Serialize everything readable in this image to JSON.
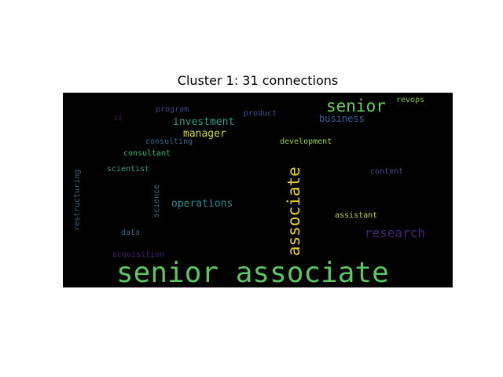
{
  "title": "Cluster 1: 31 connections",
  "chart_data": {
    "type": "wordcloud",
    "title": "Cluster 1: 31 connections",
    "background": "#000000",
    "words": [
      {
        "text": "senior associate",
        "color": "#5cc463",
        "orientation": "horizontal"
      },
      {
        "text": "associate",
        "color": "#e8d21d",
        "orientation": "vertical"
      },
      {
        "text": "senior",
        "color": "#6ccd5a",
        "orientation": "horizontal"
      },
      {
        "text": "research",
        "color": "#46237a",
        "orientation": "horizontal"
      },
      {
        "text": "operations",
        "color": "#2c8b8c",
        "orientation": "horizontal"
      },
      {
        "text": "investment",
        "color": "#2e9a8a",
        "orientation": "horizontal"
      },
      {
        "text": "manager",
        "color": "#d2db24",
        "orientation": "horizontal"
      },
      {
        "text": "business",
        "color": "#34629a",
        "orientation": "horizontal"
      },
      {
        "text": "revops",
        "color": "#7bc93f",
        "orientation": "horizontal"
      },
      {
        "text": "program",
        "color": "#3d4a8a",
        "orientation": "horizontal"
      },
      {
        "text": "product",
        "color": "#3b528b",
        "orientation": "horizontal"
      },
      {
        "text": "ii",
        "color": "#471a5a",
        "orientation": "horizontal"
      },
      {
        "text": "consulting",
        "color": "#32688e",
        "orientation": "horizontal"
      },
      {
        "text": "development",
        "color": "#93d245",
        "orientation": "horizontal"
      },
      {
        "text": "consultant",
        "color": "#33b67a",
        "orientation": "horizontal"
      },
      {
        "text": "scientist",
        "color": "#2a9a88",
        "orientation": "horizontal"
      },
      {
        "text": "content",
        "color": "#404c8c",
        "orientation": "horizontal"
      },
      {
        "text": "restructuring",
        "color": "#30698e",
        "orientation": "vertical"
      },
      {
        "text": "science",
        "color": "#2c738e",
        "orientation": "vertical"
      },
      {
        "text": "assistant",
        "color": "#c5d32a",
        "orientation": "horizontal"
      },
      {
        "text": "data",
        "color": "#3e5f8e",
        "orientation": "horizontal"
      },
      {
        "text": "acquisition",
        "color": "#4a1c6a",
        "orientation": "horizontal"
      }
    ]
  }
}
